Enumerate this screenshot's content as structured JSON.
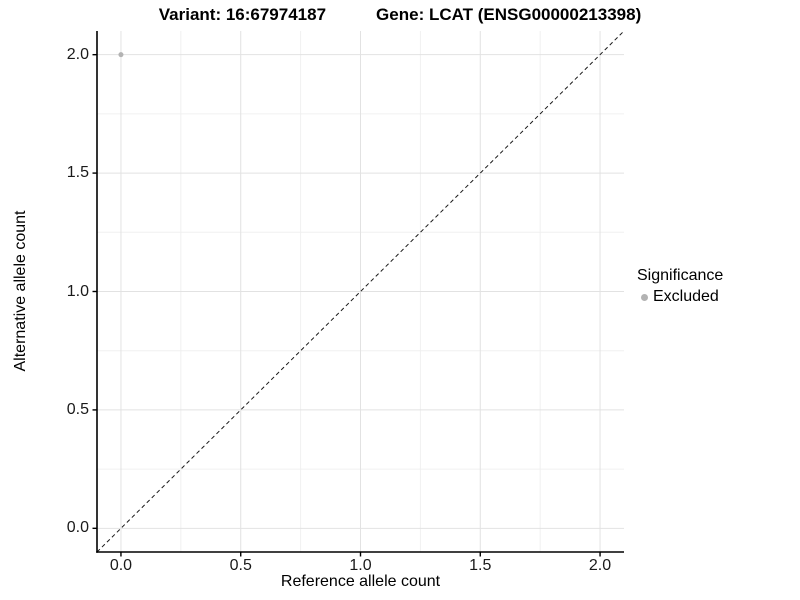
{
  "chart_data": {
    "type": "scatter",
    "title_left": "Variant: 16:67974187",
    "title_right": "Gene: LCAT (ENSG00000213398)",
    "xlabel": "Reference allele count",
    "ylabel": "Alternative allele count",
    "xlim": [
      -0.1,
      2.1
    ],
    "ylim": [
      -0.1,
      2.1
    ],
    "x_ticks": [
      0.0,
      0.5,
      1.0,
      1.5,
      2.0
    ],
    "y_ticks": [
      0.0,
      0.5,
      1.0,
      1.5,
      2.0
    ],
    "grid": "major 0.5 step, minor 0.25 step",
    "identity_line": {
      "style": "dashed",
      "from": [
        -0.1,
        -0.1
      ],
      "to": [
        2.1,
        2.1
      ]
    },
    "series": [
      {
        "name": "Excluded",
        "color": "#b3b3b3",
        "points": [
          {
            "x": 0.0,
            "y": 2.0
          }
        ]
      }
    ],
    "legend": {
      "title": "Significance",
      "position": "right",
      "items": [
        {
          "label": "Excluded",
          "color": "#b3b3b3"
        }
      ]
    },
    "colors": {
      "background": "#ffffff",
      "axis_line": "#000000",
      "tick_mark": "#000000",
      "grid_major": "#e2e2e2",
      "grid_minor": "#f0f0f0",
      "identity_line": "#1a1a1a",
      "tick_label": "#1a1a1a"
    }
  }
}
